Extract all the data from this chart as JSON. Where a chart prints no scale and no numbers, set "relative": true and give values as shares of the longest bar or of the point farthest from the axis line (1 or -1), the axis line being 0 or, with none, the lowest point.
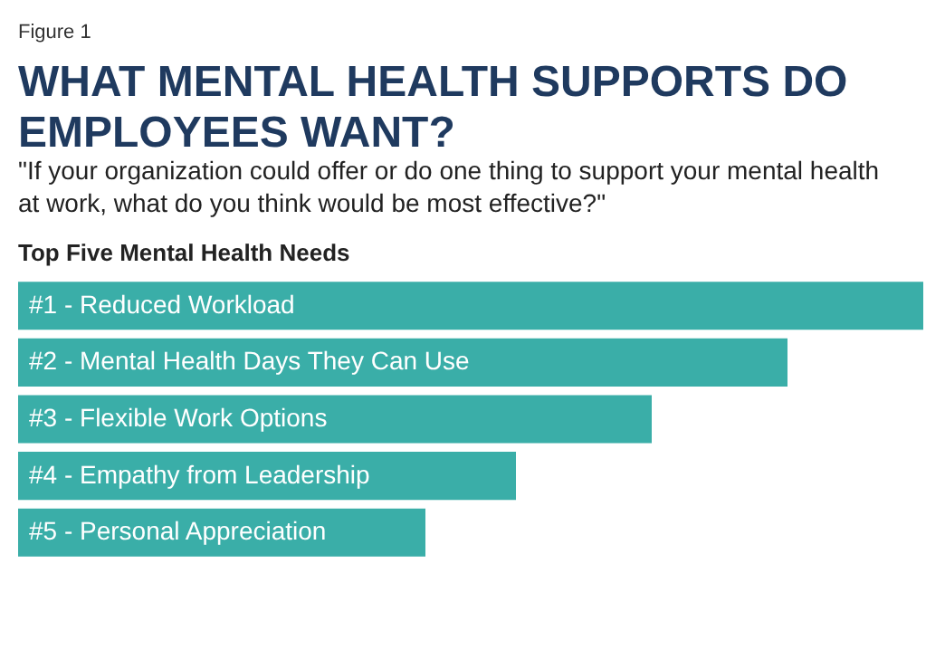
{
  "chart_data": {
    "type": "bar",
    "orientation": "horizontal",
    "relative": true,
    "title": "WHAT MENTAL HEALTH SUPPORTS DO EMPLOYEES WANT?",
    "subtitle": "\"If your organization could offer or do one thing to support your mental health at work, what do you think would be most effective?\"",
    "annotations": [
      "Figure 1",
      "Top Five Mental Health Needs"
    ],
    "categories": [
      "#1 - Reduced Workload",
      "#2 - Mental Health Days They Can Use",
      "#3 - Flexible Work Options",
      "#4 - Empathy from Leadership",
      "#5 - Personal Appreciation"
    ],
    "values": [
      1,
      0.85,
      0.7,
      0.55,
      0.45
    ],
    "color": "#3aaea8"
  }
}
